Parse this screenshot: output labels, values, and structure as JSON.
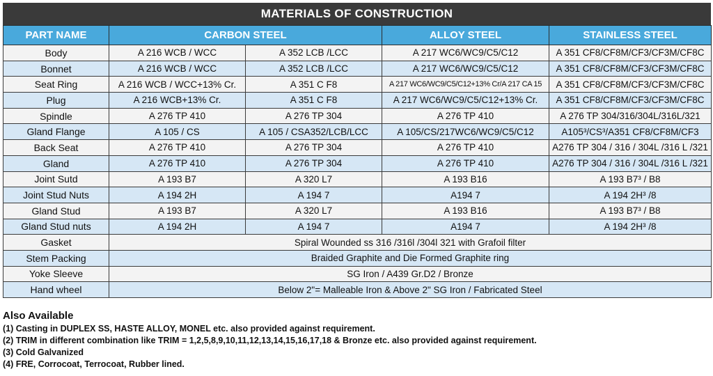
{
  "title": "MATERIALS OF CONSTRUCTION",
  "headers": {
    "part": "PART NAME",
    "carbon": "CARBON STEEL",
    "alloy": "ALLOY STEEL",
    "stainless": "STAINLESS STEEL"
  },
  "rows": [
    {
      "part": "Body",
      "cs1": "A 216 WCB / WCC",
      "cs2": "A 352 LCB /LCC",
      "alloy": "A 217 WC6/WC9/C5/C12",
      "ss": "A 351 CF8/CF8M/CF3/CF3M/CF8C"
    },
    {
      "part": "Bonnet",
      "cs1": "A 216 WCB / WCC",
      "cs2": "A 352 LCB /LCC",
      "alloy": "A 217 WC6/WC9/C5/C12",
      "ss": "A 351 CF8/CF8M/CF3/CF3M/CF8C"
    },
    {
      "part": "Seat Ring",
      "cs1": "A 216 WCB / WCC+13% Cr.",
      "cs2": "A 351 C F8",
      "alloy": "A 217 WC6/WC9/C5/C12+13% Cr/A 217 CA 15",
      "ss": "A 351 CF8/CF8M/CF3/CF3M/CF8C"
    },
    {
      "part": "Plug",
      "cs1": "A 216 WCB+13% Cr.",
      "cs2": "A 351 C F8",
      "alloy": "A 217 WC6/WC9/C5/C12+13% Cr.",
      "ss": "A 351 CF8/CF8M/CF3/CF3M/CF8C"
    },
    {
      "part": "Spindle",
      "cs1": "A 276 TP 410",
      "cs2": "A 276 TP 304",
      "alloy": "A 276  TP 410",
      "ss": "A 276 TP 304/316/304L/316L/321"
    },
    {
      "part": "Gland Flange",
      "cs1": "A 105 / CS",
      "cs2": "A 105 / CSA352/LCB/LCC",
      "alloy": "A 105/CS/217WC6/WC9/C5/C12",
      "ss": "A105³/CS³/A351 CF8/CF8M/CF3"
    },
    {
      "part": "Back Seat",
      "cs1": "A 276 TP 410",
      "cs2": "A 276 TP 304",
      "alloy": "A 276  TP 410",
      "ss": "A276 TP 304 / 316 / 304L /316 L /321"
    },
    {
      "part": "Gland",
      "cs1": "A 276 TP 410",
      "cs2": "A 276 TP 304",
      "alloy": "A 276  TP 410",
      "ss": "A276 TP 304 / 316 / 304L /316 L /321"
    },
    {
      "part": "Joint Sutd",
      "cs1": "A 193 B7",
      "cs2": "A 320 L7",
      "alloy": "A 193 B16",
      "ss": "A 193 B7³ / B8"
    },
    {
      "part": "Joint  Stud Nuts",
      "cs1": "A 194 2H",
      "cs2": "A 194 7",
      "alloy": "A194 7",
      "ss": "A 194 2H³ /8"
    },
    {
      "part": "Gland Stud",
      "cs1": "A 193 B7",
      "cs2": "A 320 L7",
      "alloy": "A 193 B16",
      "ss": "A 193 B7³ / B8"
    },
    {
      "part": "Gland Stud nuts",
      "cs1": "A 194 2H",
      "cs2": "A 194 7",
      "alloy": "A194 7",
      "ss": "A 194 2H³ /8"
    }
  ],
  "span_rows": [
    {
      "part": "Gasket",
      "value": "Spiral Wounded ss 316 /316l /304l 321 with Grafoil filter"
    },
    {
      "part": "Stem Packing",
      "value": "Braided Graphite and Die Formed Graphite ring"
    },
    {
      "part": "Yoke Sleeve",
      "value": "SG Iron / A439 Gr.D2 / Bronze"
    },
    {
      "part": "Hand wheel",
      "value": "Below 2\"= Malleable Iron & Above 2\" SG Iron / Fabricated Steel"
    }
  ],
  "notes": {
    "title": "Also Available",
    "items": [
      "(1) Casting in DUPLEX SS, HASTE ALLOY, MONEL etc. also provided against requirement.",
      "(2) TRIM in different combination like TRIM = 1,2,5,8,9,10,11,12,13,14,15,16,17,18 & Bronze etc. also provided against requirement.",
      "(3) Cold Galvanized",
      "(4) FRE, Corrocoat, Terrocoat, Rubber lined."
    ]
  }
}
